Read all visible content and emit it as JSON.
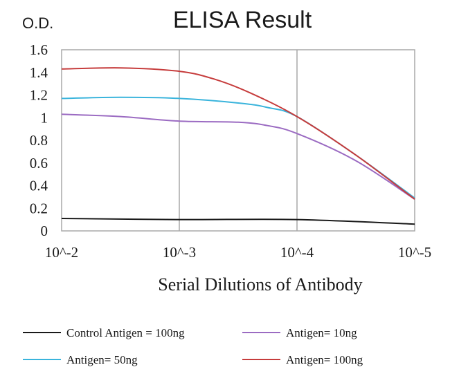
{
  "chart_data": {
    "type": "line",
    "title": "ELISA Result",
    "ylabel": "O.D.",
    "xlabel": "Serial Dilutions  of Antibody",
    "x_categories": [
      "10^-2",
      "10^-3",
      "10^-4",
      "10^-5"
    ],
    "y_ticks": [
      "0",
      "0.2",
      "0.4",
      "0.6",
      "0.8",
      "1",
      "1.2",
      "1.4",
      "1.6"
    ],
    "ylim": [
      0,
      1.6
    ],
    "grid": "vertical lines at x categories",
    "legend_placement": "bottom",
    "series": [
      {
        "name": "Control Antigen = 100ng",
        "color": "#1a1a1a",
        "points": [
          [
            0,
            0.11
          ],
          [
            1,
            0.1
          ],
          [
            2,
            0.1
          ],
          [
            3,
            0.06
          ]
        ]
      },
      {
        "name": "Antigen= 10ng",
        "color": "#9b6bc2",
        "points": [
          [
            0,
            1.03
          ],
          [
            0.5,
            1.01
          ],
          [
            1,
            0.97
          ],
          [
            1.5,
            0.96
          ],
          [
            1.75,
            0.93
          ],
          [
            2,
            0.86
          ],
          [
            2.5,
            0.62
          ],
          [
            3,
            0.28
          ]
        ]
      },
      {
        "name": "Antigen= 50ng",
        "color": "#3ab4dc",
        "points": [
          [
            0,
            1.17
          ],
          [
            0.5,
            1.18
          ],
          [
            1,
            1.17
          ],
          [
            1.5,
            1.13
          ],
          [
            1.75,
            1.09
          ],
          [
            2,
            1.01
          ],
          [
            2.5,
            0.67
          ],
          [
            3,
            0.29
          ]
        ]
      },
      {
        "name": "Antigen= 100ng",
        "color": "#c63c3c",
        "points": [
          [
            0,
            1.43
          ],
          [
            0.5,
            1.44
          ],
          [
            1,
            1.41
          ],
          [
            1.3,
            1.34
          ],
          [
            1.6,
            1.22
          ],
          [
            2,
            1.01
          ],
          [
            2.5,
            0.67
          ],
          [
            3,
            0.28
          ]
        ]
      }
    ]
  }
}
